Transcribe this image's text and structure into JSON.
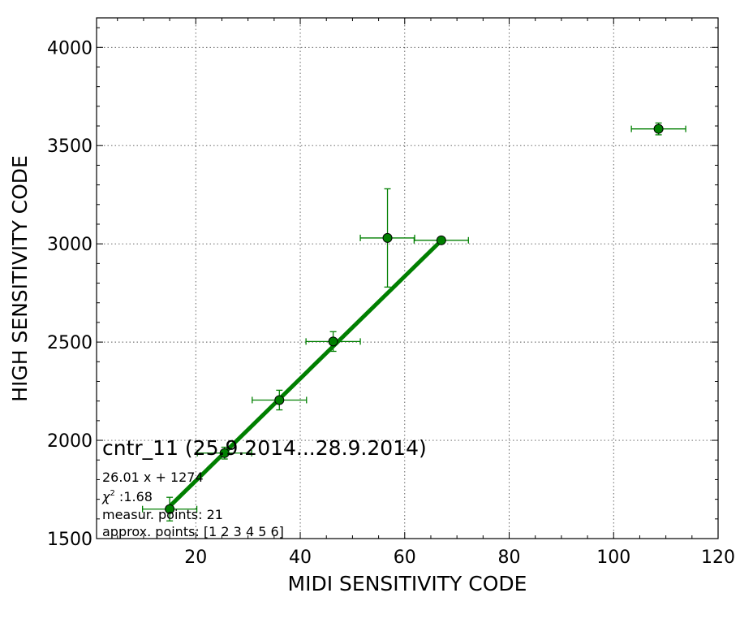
{
  "chart_data": {
    "type": "scatter",
    "xlabel": "MIDI SENSITIVITY CODE",
    "ylabel": "HIGH SENSITIVITY CODE",
    "xlim": [
      1,
      120
    ],
    "ylim": [
      1500,
      4150
    ],
    "x_ticks": [
      20,
      40,
      60,
      80,
      100,
      120
    ],
    "y_ticks": [
      1500,
      2000,
      2500,
      3000,
      3500,
      4000
    ],
    "grid": true,
    "colors": {
      "series": "#007f00",
      "marker": "#008000",
      "frame": "#000000",
      "grid": "#555555"
    },
    "points": [
      {
        "x": 15.0,
        "y": 1650,
        "xerr": 5.2,
        "yerr": 60
      },
      {
        "x": 25.5,
        "y": 1935,
        "xerr": 5.2,
        "yerr": 30
      },
      {
        "x": 36.0,
        "y": 2205,
        "xerr": 5.2,
        "yerr": 50
      },
      {
        "x": 46.3,
        "y": 2503,
        "xerr": 5.2,
        "yerr": 50
      },
      {
        "x": 56.7,
        "y": 3030,
        "xerr": 5.2,
        "yerr": 250
      },
      {
        "x": 67.0,
        "y": 3018,
        "xerr": 5.2,
        "yerr": 12
      },
      {
        "x": 108.6,
        "y": 3585,
        "xerr": 5.2,
        "yerr": 30
      }
    ],
    "fit_line": {
      "slope": 26.01,
      "intercept": 1274,
      "x_from": 15.0,
      "x_to": 67.0
    },
    "annotations": {
      "title": "cntr_11 (25.9.2014...28.9.2014)",
      "fit_formula": "26.01 x + 1274",
      "chi2_label": "χ",
      "chi2_sup": "2",
      "chi2_value": " :1.68",
      "measured": "measur. points: 21",
      "approx": "approx. points: [1 2 3 4 5 6]"
    }
  }
}
